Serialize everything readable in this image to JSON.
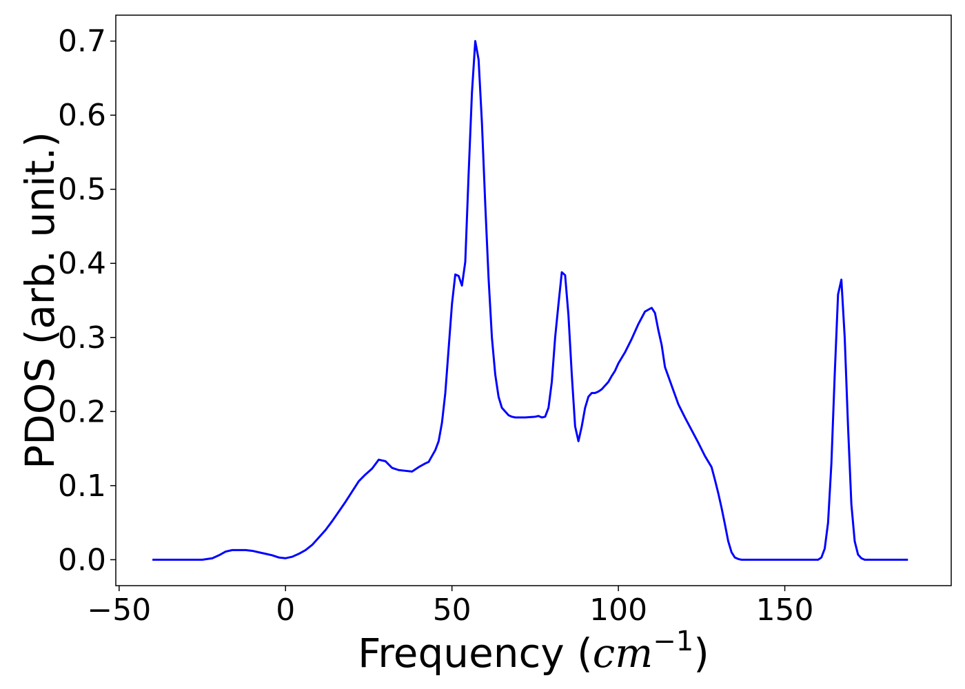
{
  "chart_data": {
    "type": "line",
    "title": "",
    "xlabel_main": "Frequency (",
    "xlabel_math": "cm",
    "xlabel_sup": "−1",
    "xlabel_close": ")",
    "ylabel": "PDOS (arb. unit.)",
    "xlim": [
      -51,
      200
    ],
    "ylim": [
      -0.035,
      0.735
    ],
    "xticks": [
      -50,
      0,
      50,
      100,
      150
    ],
    "xtick_labels": [
      "−50",
      "0",
      "50",
      "100",
      "150"
    ],
    "yticks": [
      0.0,
      0.1,
      0.2,
      0.3,
      0.4,
      0.5,
      0.6,
      0.7
    ],
    "ytick_labels": [
      "0.0",
      "0.1",
      "0.2",
      "0.3",
      "0.4",
      "0.5",
      "0.6",
      "0.7"
    ],
    "grid": false,
    "line_color": "#0000ff",
    "series": [
      {
        "x": [
          -40,
          -30,
          -25,
          -22,
          -20,
          -18,
          -16,
          -14,
          -12,
          -10,
          -8,
          -6,
          -4,
          -2,
          0,
          2,
          4,
          6,
          8,
          10,
          12,
          14,
          16,
          18,
          20,
          22,
          24,
          26,
          28,
          30,
          32,
          34,
          36,
          38,
          40,
          42,
          43,
          44,
          45,
          46,
          47,
          48,
          49,
          50,
          51,
          52,
          53,
          54,
          55,
          56,
          57,
          58,
          59,
          60,
          61,
          62,
          63,
          64,
          65,
          66,
          67,
          68,
          69,
          70,
          72,
          75,
          76,
          77,
          78,
          79,
          80,
          81,
          82,
          83,
          84,
          85,
          86,
          87,
          88,
          89,
          90,
          91,
          92,
          93,
          94,
          95,
          96,
          97,
          98,
          99,
          100,
          102,
          104,
          106,
          108,
          110,
          111,
          112,
          113,
          114,
          116,
          118,
          120,
          122,
          124,
          126,
          128,
          129,
          130,
          131,
          132,
          133,
          134,
          135,
          136,
          137,
          138,
          140,
          150,
          160,
          161,
          162,
          163,
          164,
          165,
          166,
          167,
          168,
          169,
          170,
          171,
          172,
          173,
          174,
          175,
          180,
          187
        ],
        "y": [
          0.0,
          0.0,
          0.0,
          0.002,
          0.006,
          0.011,
          0.013,
          0.013,
          0.013,
          0.012,
          0.01,
          0.008,
          0.006,
          0.003,
          0.002,
          0.004,
          0.008,
          0.013,
          0.02,
          0.03,
          0.04,
          0.052,
          0.065,
          0.078,
          0.092,
          0.106,
          0.115,
          0.123,
          0.135,
          0.133,
          0.124,
          0.121,
          0.12,
          0.119,
          0.125,
          0.13,
          0.132,
          0.14,
          0.148,
          0.16,
          0.185,
          0.225,
          0.285,
          0.345,
          0.385,
          0.383,
          0.37,
          0.402,
          0.52,
          0.63,
          0.7,
          0.675,
          0.59,
          0.48,
          0.38,
          0.3,
          0.25,
          0.22,
          0.205,
          0.2,
          0.195,
          0.193,
          0.192,
          0.192,
          0.192,
          0.193,
          0.194,
          0.192,
          0.193,
          0.205,
          0.24,
          0.3,
          0.345,
          0.388,
          0.384,
          0.33,
          0.25,
          0.18,
          0.16,
          0.18,
          0.205,
          0.22,
          0.225,
          0.225,
          0.227,
          0.23,
          0.235,
          0.24,
          0.248,
          0.255,
          0.265,
          0.28,
          0.298,
          0.318,
          0.335,
          0.34,
          0.333,
          0.31,
          0.29,
          0.26,
          0.235,
          0.21,
          0.192,
          0.175,
          0.158,
          0.14,
          0.125,
          0.108,
          0.09,
          0.07,
          0.048,
          0.025,
          0.01,
          0.003,
          0.001,
          0.0,
          0.0,
          0.0,
          0.0,
          0.0,
          0.003,
          0.015,
          0.05,
          0.13,
          0.25,
          0.358,
          0.378,
          0.3,
          0.18,
          0.075,
          0.025,
          0.007,
          0.002,
          0.0,
          0.0,
          0.0,
          0.0
        ]
      }
    ]
  }
}
